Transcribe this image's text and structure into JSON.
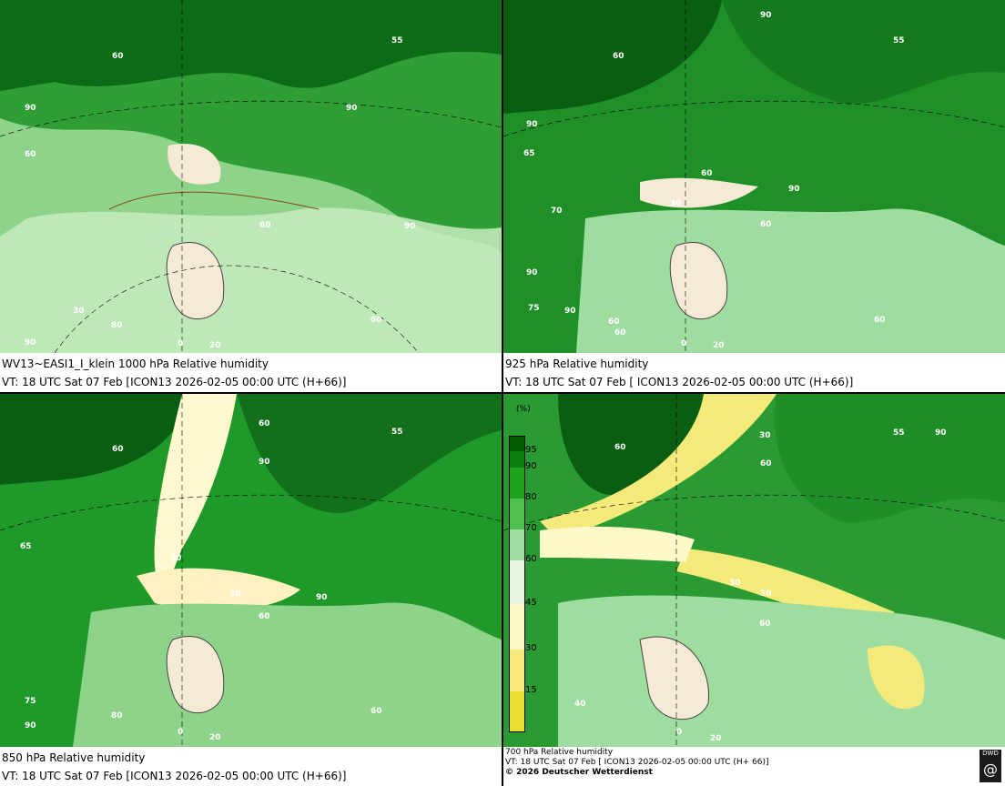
{
  "panels": [
    {
      "caption_lines": [
        "WV13~EASI1_I_klein 1000 hPa Relative humidity",
        "VT: 18 UTC Sat  07 Feb [ICON13 2026-02-05 00:00 UTC (H+66)]"
      ],
      "map_labels": [
        "60",
        "55",
        "90",
        "90",
        "60",
        "60",
        "90",
        "90",
        "80",
        "30",
        "0",
        "20",
        "60"
      ]
    },
    {
      "caption_lines": [
        "925 hPa Relative humidity",
        "VT: 18 UTC Sat  07 Feb [ ICON13 2026-02-05 00:00 UTC (H+66)]"
      ],
      "map_labels": [
        "90",
        "55",
        "60",
        "90",
        "60",
        "90",
        "30",
        "60",
        "75",
        "90",
        "70",
        "65",
        "60",
        "0",
        "20",
        "60",
        "90",
        "60"
      ]
    },
    {
      "caption_lines": [
        "850 hPa  Relative humidity",
        "VT: 18 UTC Sat  07 Feb [ICON13 2026-02-05 00:00 UTC (H+66)]"
      ],
      "map_labels": [
        "60",
        "60",
        "55",
        "90",
        "30",
        "30",
        "90",
        "60",
        "65",
        "75",
        "90",
        "80",
        "0",
        "20",
        "60"
      ]
    },
    {
      "caption_lines": [
        "700 hPa Relative humidity",
        "VT: 18 UTC Sat  07 Feb [ ICON13 2026-02-05 00:00 UTC  (H+ 66)]",
        "© 2026 Deutscher Wetterdienst"
      ],
      "map_labels": [
        "60",
        "30",
        "60",
        "55",
        "90",
        "30",
        "30",
        "60",
        "40",
        "0",
        "20"
      ]
    }
  ],
  "legend": {
    "unit": "(%)",
    "ticks": [
      "95",
      "90",
      "80",
      "70",
      "60",
      "45",
      "30",
      "15"
    ],
    "colors": [
      "#005a00",
      "#0a7d10",
      "#1fa31f",
      "#4fbf4f",
      "#9fdc9f",
      "#e8f5e0",
      "#fff8c8",
      "#f7e87a",
      "#e8e032"
    ]
  },
  "logo_text": "DWD",
  "colors": {
    "deep_green": "#0b6b16",
    "mid_green": "#1f9a2a",
    "light_green": "#7fcf7f",
    "pale_green": "#c8ebc0",
    "dry_cream": "#f6ead6",
    "yellow": "#f3ea7a"
  }
}
